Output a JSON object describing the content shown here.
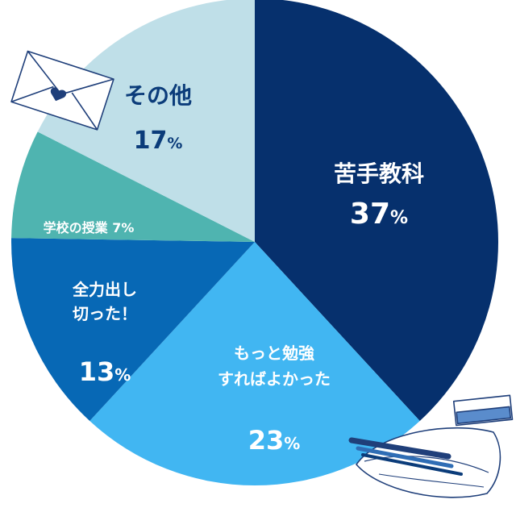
{
  "chart_data": {
    "type": "pie",
    "start": "12 o'clock",
    "direction": "clockwise",
    "slices": [
      {
        "label": "苦手教科",
        "lines": [
          "苦手教科"
        ],
        "value": 37,
        "value_text": "37",
        "unit": "%",
        "color": "#06306d",
        "text_color": "#ffffff"
      },
      {
        "label": "もっと勉強すればよかった",
        "lines": [
          "もっと勉強",
          "すればよかった"
        ],
        "value": 23,
        "value_text": "23",
        "unit": "%",
        "color": "#41b6f2",
        "text_color": "#ffffff"
      },
      {
        "label": "全力出し切った！",
        "lines": [
          "全力出し",
          "切った！"
        ],
        "value": 13,
        "value_text": "13",
        "unit": "%",
        "color": "#0768b5",
        "text_color": "#ffffff"
      },
      {
        "label": "学校の授業",
        "lines": [
          "学校の授業 7%"
        ],
        "value": 7,
        "value_text": "",
        "unit": "",
        "color": "#4fb4b0",
        "text_color": "#ffffff"
      },
      {
        "label": "その他",
        "lines": [
          "その他"
        ],
        "value": 17,
        "value_text": "17",
        "unit": "%",
        "color": "#bfdfe8",
        "text_color": "#0b3c7a"
      }
    ]
  },
  "decorations": {
    "top_left": "envelope-illustration",
    "bottom_right": "pencil-case-and-eraser-illustration"
  }
}
